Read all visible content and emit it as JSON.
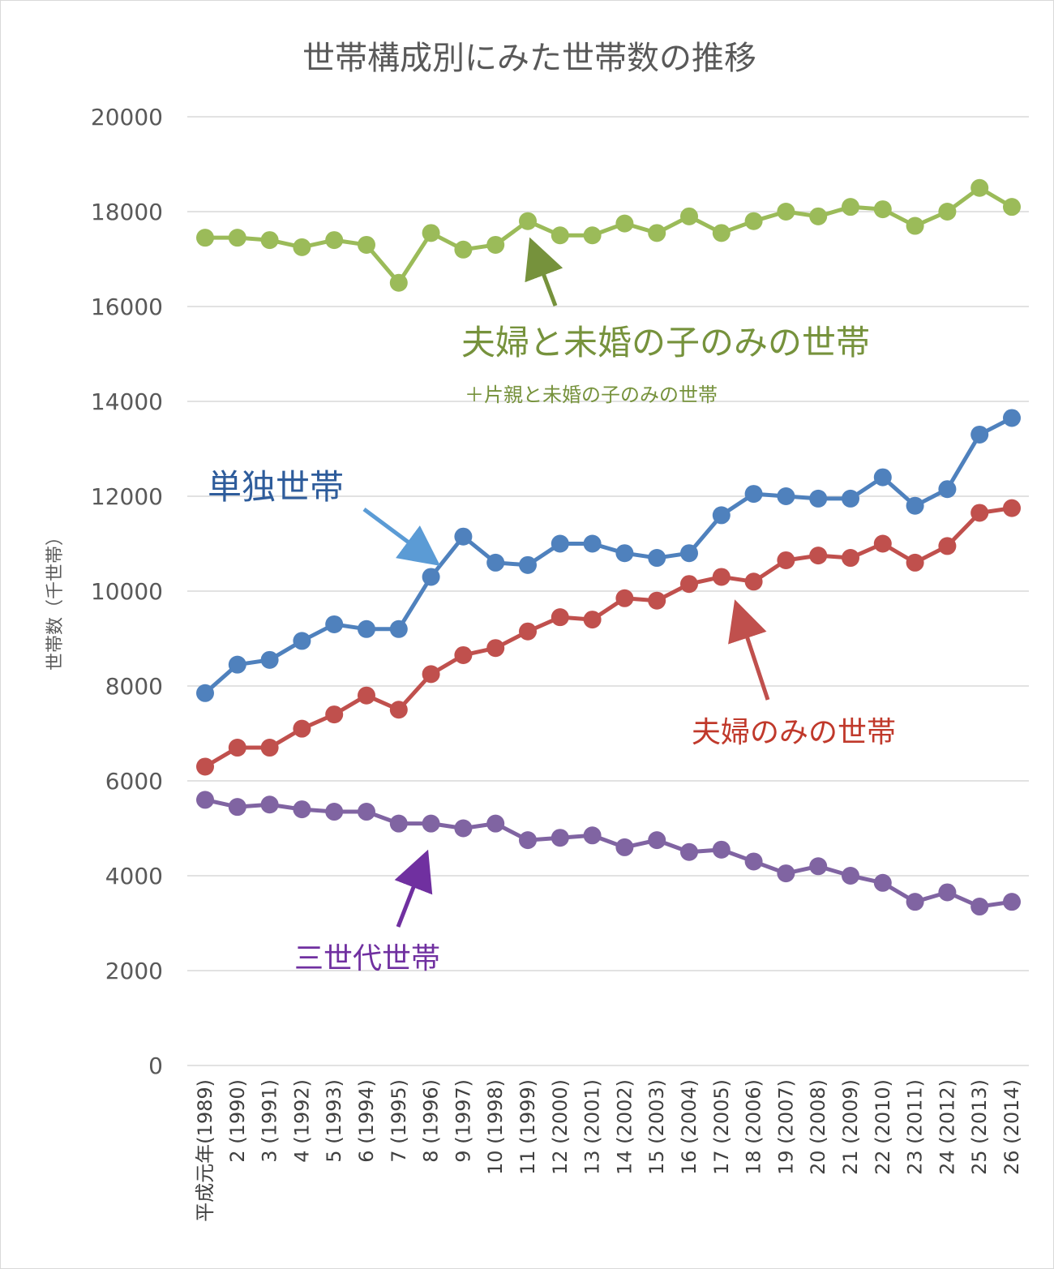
{
  "chart_data": {
    "type": "line",
    "title": "世帯構成別にみた世帯数の推移",
    "ylabel": "世帯数（千世帯）",
    "xlabel": "",
    "ylim": [
      0,
      20000
    ],
    "yticks": [
      0,
      2000,
      4000,
      6000,
      8000,
      10000,
      12000,
      14000,
      16000,
      18000,
      20000
    ],
    "grid": true,
    "categories": [
      "平成元年(1989)",
      "2 (1990)",
      "3 (1991)",
      "4 (1992)",
      "5 (1993)",
      "6 (1994)",
      "7 (1995)",
      "8 (1996)",
      "9 (1997)",
      "10 (1998)",
      "11 (1999)",
      "12 (2000)",
      "13 (2001)",
      "14 (2002)",
      "15 (2003)",
      "16 (2004)",
      "17 (2005)",
      "18 (2006)",
      "19 (2007)",
      "20 (2008)",
      "21 (2009)",
      "22 (2010)",
      "23 (2011)",
      "24 (2012)",
      "25 (2013)",
      "26 (2014)"
    ],
    "series": [
      {
        "key": "nuclear",
        "name": "夫婦と未婚の子のみの世帯",
        "color": "#9bbb59",
        "values": [
          17450,
          17450,
          17400,
          17250,
          17400,
          17300,
          16500,
          17550,
          17200,
          17300,
          17800,
          17500,
          17500,
          17750,
          17550,
          17900,
          17550,
          17800,
          18000,
          17900,
          18100,
          18050,
          17700,
          18000,
          18500,
          18100
        ]
      },
      {
        "key": "single",
        "name": "単独世帯",
        "color": "#4f81bd",
        "values": [
          7850,
          8450,
          8550,
          8950,
          9300,
          9200,
          9200,
          10300,
          11150,
          10600,
          10550,
          11000,
          11000,
          10800,
          10700,
          10800,
          11600,
          12050,
          12000,
          11950,
          11950,
          12400,
          11800,
          12150,
          13300,
          13650
        ]
      },
      {
        "key": "couple",
        "name": "夫婦のみの世帯",
        "color": "#c0504d",
        "values": [
          6300,
          6700,
          6700,
          7100,
          7400,
          7800,
          7500,
          8250,
          8650,
          8800,
          9150,
          9450,
          9400,
          9850,
          9800,
          10150,
          10300,
          10200,
          10650,
          10750,
          10700,
          11000,
          10600,
          10950,
          11650,
          11750
        ]
      },
      {
        "key": "three_gen",
        "name": "三世代世帯",
        "color": "#8064a2",
        "values": [
          5600,
          5450,
          5500,
          5400,
          5350,
          5350,
          5100,
          5100,
          5000,
          5100,
          4750,
          4800,
          4850,
          4600,
          4750,
          4500,
          4550,
          4300,
          4050,
          4200,
          4000,
          3850,
          3450,
          3650,
          3350,
          3450
        ]
      }
    ],
    "annotations": [
      {
        "key": "nuclear_label",
        "text": "夫婦と未婚の子のみの世帯",
        "color": "#76923c"
      },
      {
        "key": "nuclear_sublabel",
        "text": "＋片親と未婚の子のみの世帯",
        "color": "#76923c"
      },
      {
        "key": "single_label",
        "text": "単独世帯",
        "color": "#2e5c9b"
      },
      {
        "key": "couple_label",
        "text": "夫婦のみの世帯",
        "color": "#c0392b"
      },
      {
        "key": "three_gen_label",
        "text": "三世代世帯",
        "color": "#7030a0"
      }
    ]
  }
}
